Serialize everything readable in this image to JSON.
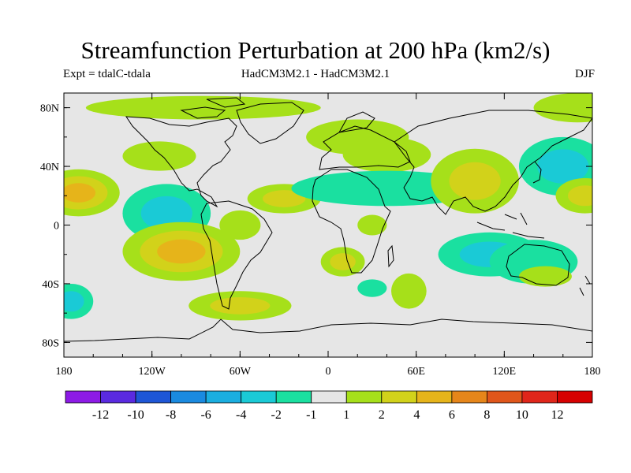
{
  "title": "Streamfunction Perturbation at 200 hPa (km2/s)",
  "experiment_label": "Expt = tdalC-tdala",
  "models_label": "HadCM3M2.1 - HadCM3M2.1",
  "season_label": "DJF",
  "map": {
    "lon_range": [
      -180,
      180
    ],
    "lat_range": [
      -90,
      90
    ],
    "lat_ticks": [
      {
        "value": 80,
        "label": "80N"
      },
      {
        "value": 40,
        "label": "40N"
      },
      {
        "value": 0,
        "label": "0"
      },
      {
        "value": -40,
        "label": "40S"
      },
      {
        "value": -80,
        "label": "80S"
      }
    ],
    "lon_ticks": [
      {
        "value": -180,
        "label": "180"
      },
      {
        "value": -120,
        "label": "120W"
      },
      {
        "value": -60,
        "label": "60W"
      },
      {
        "value": 0,
        "label": "0"
      },
      {
        "value": 60,
        "label": "60E"
      },
      {
        "value": 120,
        "label": "120E"
      },
      {
        "value": 180,
        "label": "180"
      }
    ],
    "background_color": "#e6e6e6",
    "anomaly_blobs": [
      {
        "lon": -170,
        "lat": 22,
        "rlon": 28,
        "rlat": 16,
        "level": 6
      },
      {
        "lon": -110,
        "lat": 8,
        "rlon": 30,
        "rlat": 20,
        "level": -4
      },
      {
        "lon": -115,
        "lat": 47,
        "rlon": 25,
        "rlat": 10,
        "level": 2
      },
      {
        "lon": -100,
        "lat": -18,
        "rlon": 40,
        "rlat": 20,
        "level": 6
      },
      {
        "lon": -60,
        "lat": 0,
        "rlon": 14,
        "rlat": 10,
        "level": 2
      },
      {
        "lon": -60,
        "lat": -55,
        "rlon": 35,
        "rlat": 10,
        "level": 4
      },
      {
        "lon": -85,
        "lat": 80,
        "rlon": 80,
        "rlat": 8,
        "level": 2
      },
      {
        "lon": -30,
        "lat": 18,
        "rlon": 25,
        "rlat": 10,
        "level": 4
      },
      {
        "lon": 10,
        "lat": -25,
        "rlon": 15,
        "rlat": 10,
        "level": 4
      },
      {
        "lon": 20,
        "lat": 60,
        "rlon": 35,
        "rlat": 12,
        "level": 2
      },
      {
        "lon": 40,
        "lat": 48,
        "rlon": 30,
        "rlat": 12,
        "level": 2
      },
      {
        "lon": 40,
        "lat": 25,
        "rlon": 65,
        "rlat": 12,
        "level": -2
      },
      {
        "lon": 30,
        "lat": 0,
        "rlon": 10,
        "rlat": 7,
        "level": 1
      },
      {
        "lon": 100,
        "lat": 30,
        "rlon": 30,
        "rlat": 22,
        "level": 4
      },
      {
        "lon": 110,
        "lat": -20,
        "rlon": 35,
        "rlat": 15,
        "level": -4
      },
      {
        "lon": 140,
        "lat": -25,
        "rlon": 30,
        "rlat": 15,
        "level": -2
      },
      {
        "lon": 148,
        "lat": -35,
        "rlon": 18,
        "rlat": 7,
        "level": 2
      },
      {
        "lon": 160,
        "lat": 40,
        "rlon": 30,
        "rlat": 20,
        "level": -4
      },
      {
        "lon": 170,
        "lat": 80,
        "rlon": 30,
        "rlat": 10,
        "level": 2
      },
      {
        "lon": 175,
        "lat": 20,
        "rlon": 20,
        "rlat": 12,
        "level": 4
      },
      {
        "lon": -175,
        "lat": -52,
        "rlon": 15,
        "rlat": 12,
        "level": -4
      },
      {
        "lon": 55,
        "lat": -45,
        "rlon": 12,
        "rlat": 12,
        "level": 2
      },
      {
        "lon": 30,
        "lat": -43,
        "rlon": 10,
        "rlat": 6,
        "level": -2
      }
    ]
  },
  "colorbar": {
    "colors": [
      "#8d1ae6",
      "#5a2ae0",
      "#1e56d6",
      "#1a8ae0",
      "#1aaee0",
      "#1acad6",
      "#1ae0a0",
      "#e6e6e6",
      "#a6e01a",
      "#d2d21a",
      "#e6b41a",
      "#e6861a",
      "#e0561a",
      "#e0261a",
      "#d60000"
    ],
    "labels": [
      "-12",
      "-10",
      "-8",
      "-6",
      "-4",
      "-2",
      "-1",
      "1",
      "2",
      "4",
      "6",
      "8",
      "10",
      "12"
    ]
  }
}
